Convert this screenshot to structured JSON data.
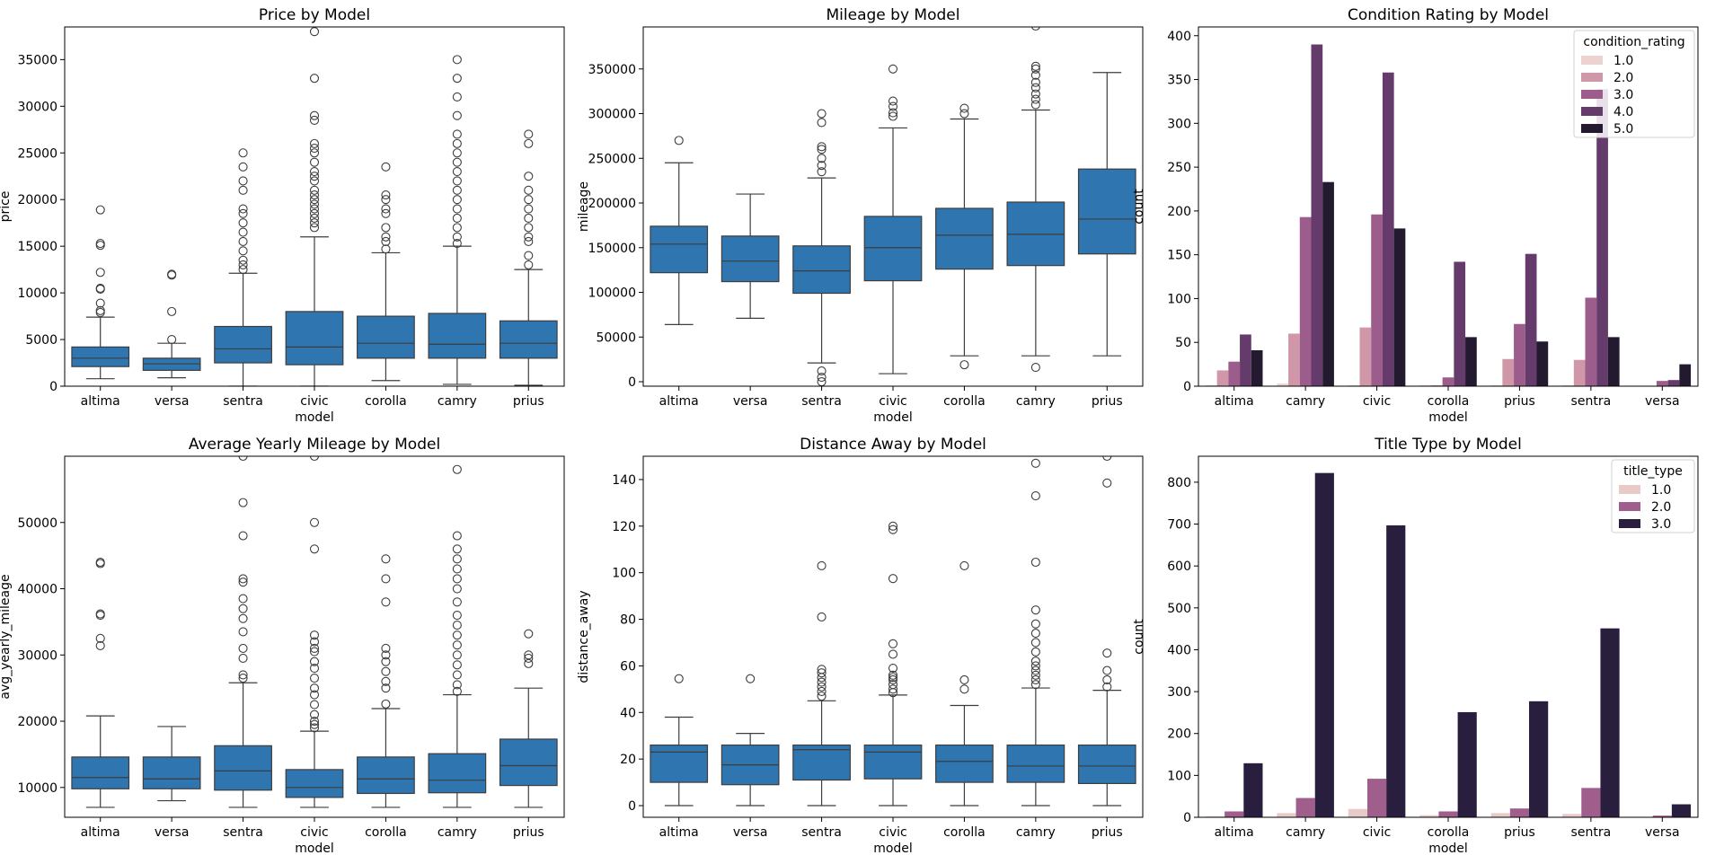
{
  "colors": {
    "box": "#2f75b0",
    "hue3": [
      "#e8cbc8",
      "#a05e8c",
      "#2a1e3f"
    ],
    "hue5": [
      "#ecd3cf",
      "#cf97a8",
      "#9c5c8c",
      "#643b6b",
      "#231a30"
    ]
  },
  "chart_data": [
    {
      "type": "box",
      "title": "Price by Model",
      "xlabel": "model",
      "ylabel": "price",
      "ylim": [
        0,
        38500
      ],
      "yticks": [
        0,
        5000,
        10000,
        15000,
        20000,
        25000,
        30000,
        35000
      ],
      "categories": [
        "altima",
        "versa",
        "sentra",
        "civic",
        "corolla",
        "camry",
        "prius"
      ],
      "boxes": [
        {
          "whislo": 800,
          "q1": 2100,
          "med": 3000,
          "q3": 4200,
          "whishi": 7400,
          "fliers": [
            7900,
            8100,
            8900,
            10400,
            10500,
            12200,
            15100,
            15300,
            18900
          ]
        },
        {
          "whislo": 900,
          "q1": 1700,
          "med": 2400,
          "q3": 3000,
          "whishi": 4600,
          "fliers": [
            5000,
            8000,
            11900,
            12000
          ]
        },
        {
          "whislo": 0,
          "q1": 2500,
          "med": 4000,
          "q3": 6400,
          "whishi": 12100,
          "fliers": [
            12500,
            13000,
            13500,
            14500,
            15500,
            16500,
            17500,
            18500,
            19000,
            21000,
            22000,
            23500,
            25000
          ]
        },
        {
          "whislo": 0,
          "q1": 2300,
          "med": 4200,
          "q3": 8000,
          "whishi": 16000,
          "fliers": [
            17000,
            17500,
            18000,
            18500,
            19000,
            19500,
            20000,
            20500,
            21000,
            22000,
            22500,
            23000,
            24000,
            25000,
            25500,
            26000,
            28500,
            29000,
            33000,
            38000
          ]
        },
        {
          "whislo": 600,
          "q1": 3000,
          "med": 4600,
          "q3": 7500,
          "whishi": 14300,
          "fliers": [
            14700,
            15500,
            16000,
            17000,
            18500,
            19000,
            20000,
            20500,
            23500
          ]
        },
        {
          "whislo": 200,
          "q1": 3000,
          "med": 4500,
          "q3": 7800,
          "whishi": 15000,
          "fliers": [
            15300,
            16000,
            17000,
            18000,
            19000,
            20000,
            21000,
            22000,
            23000,
            24000,
            25000,
            26000,
            27000,
            29000,
            31000,
            33000,
            35000
          ]
        },
        {
          "whislo": 100,
          "q1": 3000,
          "med": 4600,
          "q3": 7000,
          "whishi": 12500,
          "fliers": [
            13000,
            14000,
            15500,
            16000,
            17000,
            18000,
            19000,
            20000,
            21000,
            22500,
            26000,
            27000
          ]
        }
      ]
    },
    {
      "type": "box",
      "title": "Mileage by Model",
      "xlabel": "model",
      "ylabel": "mileage",
      "ylim": [
        -5000,
        397000
      ],
      "yticks": [
        0,
        50000,
        100000,
        150000,
        200000,
        250000,
        300000,
        350000
      ],
      "categories": [
        "altima",
        "versa",
        "sentra",
        "civic",
        "corolla",
        "camry",
        "prius"
      ],
      "boxes": [
        {
          "whislo": 64000,
          "q1": 122000,
          "med": 154000,
          "q3": 174000,
          "whishi": 245000,
          "fliers": [
            270000
          ]
        },
        {
          "whislo": 71000,
          "q1": 112000,
          "med": 135000,
          "q3": 163000,
          "whishi": 210000,
          "fliers": []
        },
        {
          "whislo": 21000,
          "q1": 99000,
          "med": 124000,
          "q3": 152000,
          "whishi": 228000,
          "fliers": [
            0,
            5000,
            12000,
            235000,
            242000,
            250000,
            260000,
            263000,
            290000,
            300000
          ]
        },
        {
          "whislo": 9000,
          "q1": 113000,
          "med": 150000,
          "q3": 185000,
          "whishi": 284000,
          "fliers": [
            297000,
            301000,
            308000,
            314000,
            350000
          ]
        },
        {
          "whislo": 29000,
          "q1": 126000,
          "med": 164000,
          "q3": 194000,
          "whishi": 294000,
          "fliers": [
            19000,
            300000,
            306000
          ]
        },
        {
          "whislo": 29000,
          "q1": 130000,
          "med": 165000,
          "q3": 201000,
          "whishi": 304000,
          "fliers": [
            16000,
            310000,
            316000,
            322000,
            329000,
            335000,
            343000,
            350000,
            353000,
            398000
          ]
        },
        {
          "whislo": 29000,
          "q1": 143000,
          "med": 182000,
          "q3": 238000,
          "whishi": 346000,
          "fliers": []
        }
      ]
    },
    {
      "type": "bar",
      "title": "Condition Rating by Model",
      "xlabel": "model",
      "ylabel": "count",
      "ylim": [
        0,
        410
      ],
      "yticks": [
        0,
        50,
        100,
        150,
        200,
        250,
        300,
        350,
        400
      ],
      "categories": [
        "altima",
        "camry",
        "civic",
        "corolla",
        "prius",
        "sentra",
        "versa"
      ],
      "legend_title": "condition_rating",
      "legend_position": "top-right",
      "series": [
        {
          "name": "1.0",
          "values": [
            1,
            3,
            1,
            1,
            1,
            1,
            0
          ]
        },
        {
          "name": "2.0",
          "values": [
            18,
            60,
            67,
            1,
            31,
            30,
            0
          ]
        },
        {
          "name": "3.0",
          "values": [
            28,
            193,
            196,
            10,
            71,
            101,
            6
          ]
        },
        {
          "name": "4.0",
          "values": [
            59,
            390,
            358,
            142,
            151,
            339,
            7
          ]
        },
        {
          "name": "5.0",
          "values": [
            41,
            233,
            180,
            56,
            51,
            56,
            25
          ]
        }
      ]
    },
    {
      "type": "box",
      "title": "Average Yearly Mileage by Model",
      "xlabel": "model",
      "ylabel": "avg_yearly_mileage",
      "ylim": [
        5500,
        60000
      ],
      "yticks": [
        10000,
        20000,
        30000,
        40000,
        50000
      ],
      "categories": [
        "altima",
        "versa",
        "sentra",
        "civic",
        "corolla",
        "camry",
        "prius"
      ],
      "boxes": [
        {
          "whislo": 7000,
          "q1": 9800,
          "med": 11500,
          "q3": 14600,
          "whishi": 20800,
          "fliers": [
            31400,
            32500,
            36000,
            36200,
            43800,
            44000
          ]
        },
        {
          "whislo": 8000,
          "q1": 9800,
          "med": 11300,
          "q3": 14600,
          "whishi": 19200,
          "fliers": []
        },
        {
          "whislo": 7000,
          "q1": 9600,
          "med": 12500,
          "q3": 16300,
          "whishi": 25800,
          "fliers": [
            26500,
            27000,
            29500,
            31000,
            33500,
            35500,
            37000,
            38500,
            41000,
            41500,
            48000,
            53000,
            60000
          ]
        },
        {
          "whislo": 7000,
          "q1": 8500,
          "med": 10000,
          "q3": 12700,
          "whishi": 18500,
          "fliers": [
            19000,
            19500,
            20000,
            21000,
            22500,
            24000,
            25000,
            26500,
            28000,
            29000,
            30500,
            31000,
            32000,
            33000,
            46000,
            50000,
            60000
          ]
        },
        {
          "whislo": 7000,
          "q1": 9100,
          "med": 11300,
          "q3": 14600,
          "whishi": 21900,
          "fliers": [
            22600,
            25000,
            26000,
            27500,
            29000,
            30000,
            31000,
            38000,
            41500,
            44500
          ]
        },
        {
          "whislo": 7000,
          "q1": 9200,
          "med": 11100,
          "q3": 15100,
          "whishi": 24000,
          "fliers": [
            24500,
            25500,
            27000,
            28500,
            30000,
            31500,
            33000,
            34500,
            36000,
            38000,
            40000,
            41500,
            43000,
            44500,
            46000,
            48000,
            58000
          ]
        },
        {
          "whislo": 7000,
          "q1": 10300,
          "med": 13300,
          "q3": 17300,
          "whishi": 25000,
          "fliers": [
            28700,
            29500,
            30000,
            33200
          ]
        }
      ]
    },
    {
      "type": "box",
      "title": "Distance Away by Model",
      "xlabel": "model",
      "ylabel": "distance_away",
      "ylim": [
        -5,
        150
      ],
      "yticks": [
        0,
        20,
        40,
        60,
        80,
        100,
        120,
        140
      ],
      "categories": [
        "altima",
        "versa",
        "sentra",
        "civic",
        "corolla",
        "camry",
        "prius"
      ],
      "boxes": [
        {
          "whislo": 0,
          "q1": 10,
          "med": 23,
          "q3": 26,
          "whishi": 38,
          "fliers": [
            54.5
          ]
        },
        {
          "whislo": 0,
          "q1": 9,
          "med": 17.5,
          "q3": 26,
          "whishi": 31,
          "fliers": [
            54.5
          ]
        },
        {
          "whislo": 0,
          "q1": 11,
          "med": 24,
          "q3": 26,
          "whishi": 45,
          "fliers": [
            47,
            49,
            51,
            53,
            55,
            57,
            58.5,
            81,
            103
          ]
        },
        {
          "whislo": 0,
          "q1": 11.5,
          "med": 23,
          "q3": 26,
          "whishi": 47.5,
          "fliers": [
            48.5,
            50,
            52,
            54,
            55,
            56,
            59,
            65,
            69.5,
            97.5,
            118.5,
            120
          ]
        },
        {
          "whislo": 0,
          "q1": 10,
          "med": 19,
          "q3": 26,
          "whishi": 43,
          "fliers": [
            50,
            54,
            103
          ]
        },
        {
          "whislo": 0,
          "q1": 10,
          "med": 17,
          "q3": 26,
          "whishi": 50.5,
          "fliers": [
            52,
            54,
            56,
            58,
            60,
            62,
            66,
            70,
            74,
            78,
            84,
            104.5,
            133,
            147
          ]
        },
        {
          "whislo": 0,
          "q1": 9.5,
          "med": 17,
          "q3": 26,
          "whishi": 49.5,
          "fliers": [
            51,
            54,
            58,
            65.5,
            138.5,
            150
          ]
        }
      ]
    },
    {
      "type": "bar",
      "title": "Title Type by Model",
      "xlabel": "model",
      "ylabel": "count",
      "ylim": [
        0,
        862
      ],
      "yticks": [
        0,
        100,
        200,
        300,
        400,
        500,
        600,
        700,
        800
      ],
      "categories": [
        "altima",
        "camry",
        "civic",
        "corolla",
        "prius",
        "sentra",
        "versa"
      ],
      "legend_title": "title_type",
      "legend_position": "top-right",
      "series": [
        {
          "name": "1.0",
          "values": [
            2,
            10,
            20,
            5,
            10,
            8,
            1
          ]
        },
        {
          "name": "2.0",
          "values": [
            14,
            46,
            92,
            14,
            21,
            70,
            4
          ]
        },
        {
          "name": "3.0",
          "values": [
            129,
            822,
            697,
            251,
            277,
            451,
            31
          ]
        }
      ]
    }
  ]
}
